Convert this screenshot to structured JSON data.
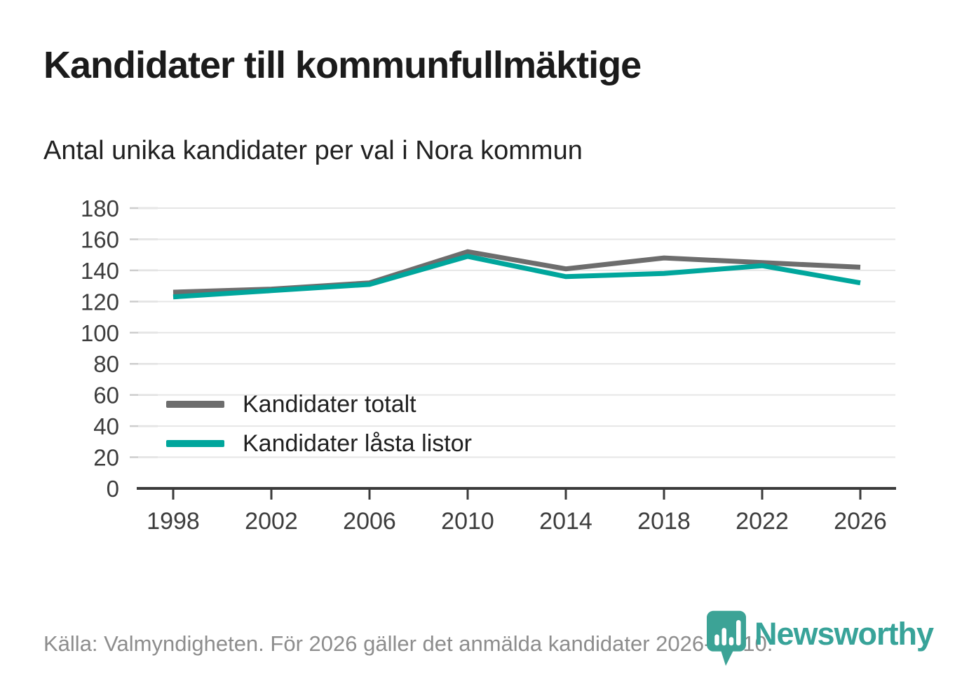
{
  "header": {
    "title": "Kandidater till kommunfullmäktige",
    "subtitle": "Antal unika kandidater per val i Nora kommun"
  },
  "chart_data": {
    "type": "line",
    "title": "Kandidater till kommunfullmäktige",
    "subtitle": "Antal unika kandidater per val i Nora kommun",
    "categories": [
      "1998",
      "2002",
      "2006",
      "2010",
      "2014",
      "2018",
      "2022",
      "2026"
    ],
    "series": [
      {
        "name": "Kandidater totalt",
        "color": "#6d6d6d",
        "values": [
          126,
          128,
          132,
          152,
          141,
          148,
          145,
          142
        ]
      },
      {
        "name": "Kandidater låsta listor",
        "color": "#00a69c",
        "values": [
          123,
          127,
          131,
          149,
          136,
          138,
          143,
          132
        ]
      }
    ],
    "xlabel": "",
    "ylabel": "",
    "ylim": [
      0,
      180
    ],
    "yticks": [
      0,
      20,
      40,
      60,
      80,
      100,
      120,
      140,
      160,
      180
    ],
    "grid": true,
    "legend_position": "inside-left"
  },
  "footer": {
    "source": "Källa: Valmyndigheten. För 2026 gäller det anmälda kandidater 2026-04-10."
  },
  "logo": {
    "text": "Newsworthy",
    "icon": "newsworthy-pin-bar-chart-icon",
    "color": "#38a399"
  },
  "colors": {
    "accent_teal": "#00a69c",
    "line_gray": "#6d6d6d",
    "gridline": "#e6e6e6",
    "axis": "#3b3b3b",
    "tick_label": "#3d3d3d",
    "footer_text": "#8d8d8d"
  }
}
